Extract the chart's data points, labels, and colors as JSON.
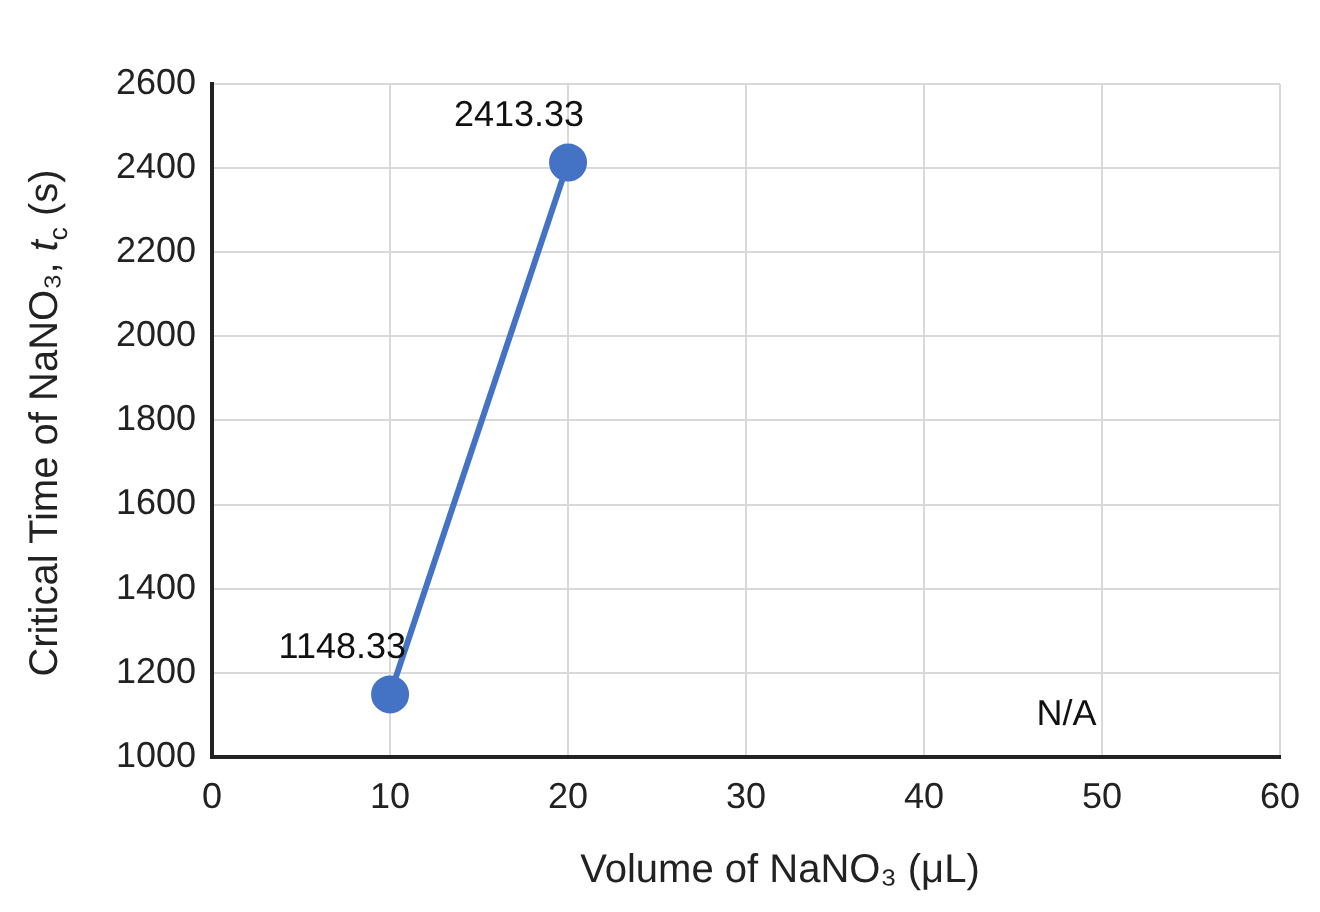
{
  "chart_data": {
    "type": "line",
    "xlabel": "Volume of NaNO₃ (μL)",
    "ylabel": "Critical Time of NaNO₃,  t$_{c}$ (s)",
    "x": [
      10,
      20
    ],
    "series": [
      {
        "color": "#4472c4",
        "values": [
          1148.33,
          2413.33
        ]
      }
    ],
    "xlim": [
      0,
      60
    ],
    "xticks": [
      0,
      10,
      20,
      30,
      40,
      50,
      60
    ],
    "ylim": [
      1000,
      2600
    ],
    "yticks": [
      1000,
      1200,
      1400,
      1600,
      1800,
      2000,
      2200,
      2400,
      2600
    ],
    "grid": true,
    "legend": false,
    "marker": "circle",
    "line_style": "solid",
    "data_labels": true,
    "annotations": [
      "N/A"
    ]
  }
}
